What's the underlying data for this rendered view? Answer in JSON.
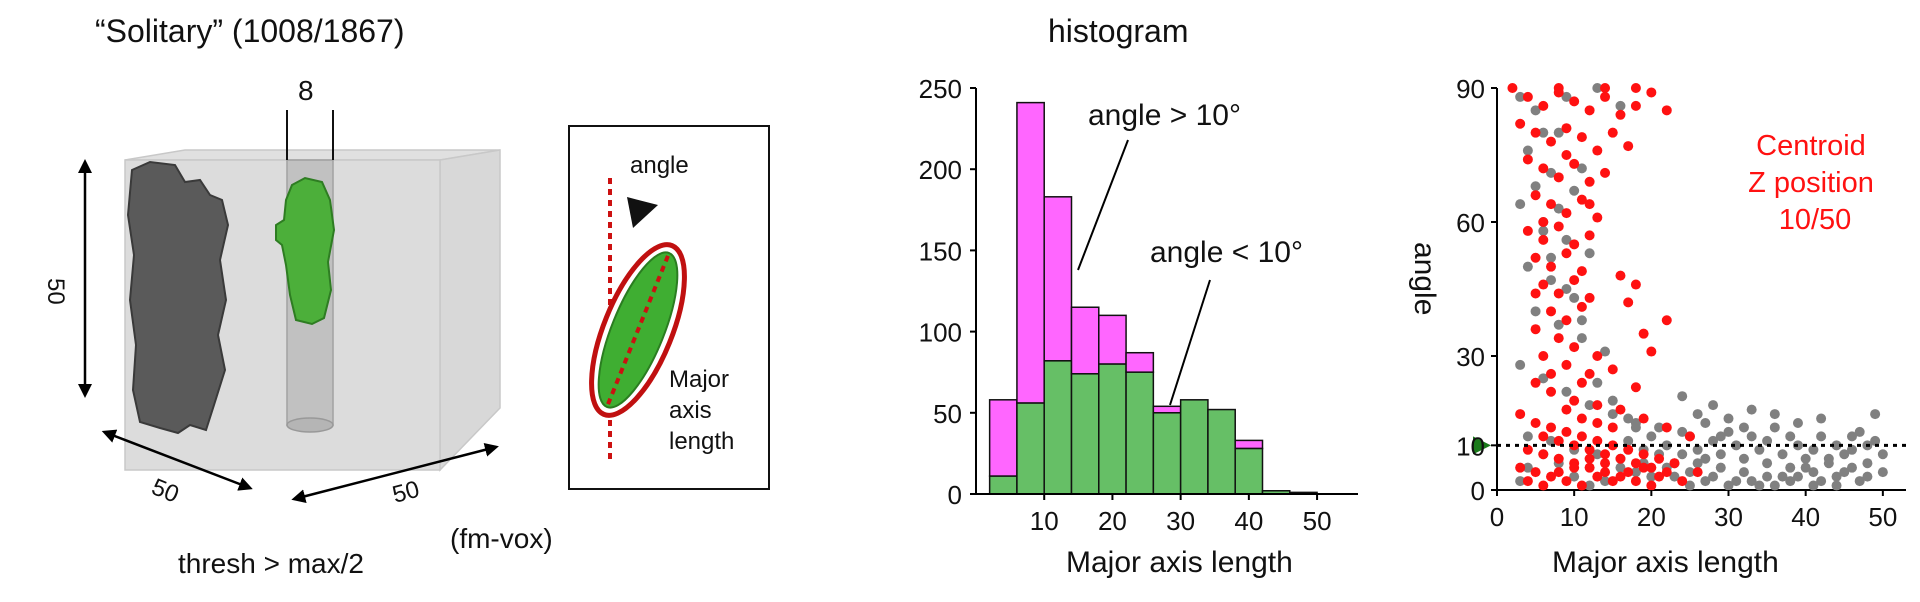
{
  "left_panel": {
    "title": "“Solitary” (1008/1867)",
    "cube_dim_vertical": "50",
    "cube_dim_depth": "50",
    "cube_dim_width": "50",
    "tube_width": "8",
    "thresh_label": "thresh > max/2",
    "units_label": "(fm-vox)",
    "inset_angle_label": "angle",
    "inset_major_label": [
      "Major",
      "axis",
      "length"
    ]
  },
  "colors": {
    "magenta": "#ff66ff",
    "green": "#66bf66",
    "red": "#ff1111",
    "gray": "#808080",
    "dark_object": "#555555",
    "green_object": "#4caf3a",
    "arrow_green": "#1a7a1a"
  },
  "chart_data": [
    {
      "type": "bar",
      "title": "histogram",
      "xlabel": "Major axis length",
      "ylabel": "",
      "xlim": [
        0,
        56
      ],
      "ylim": [
        0,
        250
      ],
      "xticks": [
        10,
        20,
        30,
        40,
        50
      ],
      "yticks": [
        0,
        50,
        100,
        150,
        200,
        250
      ],
      "bin_edges": [
        2,
        6,
        10,
        14,
        18,
        22,
        26,
        30,
        34,
        38,
        42,
        46,
        50,
        54
      ],
      "series": [
        {
          "name": "angle < 10°",
          "values": [
            11,
            56,
            82,
            74,
            80,
            75,
            50,
            58,
            52,
            28,
            2,
            1,
            0
          ]
        },
        {
          "name": "angle > 10°",
          "values": [
            47,
            185,
            101,
            41,
            30,
            12,
            4,
            0,
            0,
            5,
            0,
            0,
            0
          ]
        }
      ],
      "annotations": [
        "angle > 10°",
        "angle < 10°"
      ]
    },
    {
      "type": "scatter",
      "xlabel": "Major axis length",
      "ylabel": "angle",
      "xlim": [
        0,
        53
      ],
      "ylim": [
        0,
        90
      ],
      "xticks": [
        0,
        10,
        20,
        30,
        40,
        50
      ],
      "yticks": [
        0,
        10,
        30,
        60,
        90
      ],
      "threshold": 10,
      "annotation": [
        "Centroid",
        "Z position",
        "10/50"
      ],
      "series": [
        {
          "name": "gray",
          "points": [
            [
              3,
              88
            ],
            [
              5,
              85
            ],
            [
              8,
              80
            ],
            [
              4,
              76
            ],
            [
              7,
              71
            ],
            [
              10,
              67
            ],
            [
              3,
              64
            ],
            [
              6,
              60
            ],
            [
              9,
              56
            ],
            [
              12,
              53
            ],
            [
              4,
              50
            ],
            [
              7,
              47
            ],
            [
              10,
              43
            ],
            [
              5,
              40
            ],
            [
              8,
              37
            ],
            [
              11,
              34
            ],
            [
              14,
              31
            ],
            [
              3,
              28
            ],
            [
              6,
              25
            ],
            [
              9,
              22
            ],
            [
              12,
              19
            ],
            [
              15,
              17
            ],
            [
              18,
              15
            ],
            [
              21,
              14
            ],
            [
              24,
              13
            ],
            [
              4,
              12
            ],
            [
              7,
              11
            ],
            [
              10,
              9
            ],
            [
              13,
              8
            ],
            [
              16,
              7
            ],
            [
              19,
              6
            ],
            [
              22,
              5
            ],
            [
              25,
              4
            ],
            [
              28,
              3
            ],
            [
              31,
              2
            ],
            [
              34,
              1
            ],
            [
              37,
              3
            ],
            [
              40,
              5
            ],
            [
              43,
              7
            ],
            [
              46,
              9
            ],
            [
              49,
              11
            ],
            [
              27,
              15
            ],
            [
              30,
              13
            ],
            [
              33,
              12
            ],
            [
              36,
              14
            ],
            [
              39,
              10
            ],
            [
              42,
              12
            ],
            [
              45,
              8
            ],
            [
              48,
              6
            ],
            [
              26,
              9
            ],
            [
              29,
              8
            ],
            [
              32,
              7
            ],
            [
              35,
              6
            ],
            [
              38,
              5
            ],
            [
              41,
              4
            ],
            [
              44,
              3
            ],
            [
              47,
              2
            ],
            [
              50,
              4
            ],
            [
              28,
              11
            ],
            [
              31,
              10
            ],
            [
              34,
              9
            ],
            [
              37,
              8
            ],
            [
              40,
              7
            ],
            [
              43,
              6
            ],
            [
              46,
              5
            ],
            [
              29,
              5
            ],
            [
              32,
              4
            ],
            [
              35,
              3
            ],
            [
              38,
              2
            ],
            [
              41,
              1
            ],
            [
              44,
              1
            ],
            [
              30,
              1
            ],
            [
              33,
              2
            ],
            [
              36,
              1
            ],
            [
              39,
              3
            ],
            [
              42,
              2
            ],
            [
              45,
              4
            ],
            [
              48,
              3
            ],
            [
              27,
              2
            ],
            [
              25,
              1
            ],
            [
              23,
              3
            ],
            [
              26,
              6
            ],
            [
              24,
              8
            ],
            [
              22,
              10
            ],
            [
              20,
              12
            ],
            [
              18,
              14
            ],
            [
              17,
              16
            ],
            [
              15,
              20
            ],
            [
              13,
              24
            ],
            [
              11,
              38
            ],
            [
              9,
              45
            ],
            [
              7,
              52
            ],
            [
              6,
              58
            ],
            [
              8,
              63
            ],
            [
              5,
              68
            ],
            [
              11,
              72
            ],
            [
              6,
              80
            ],
            [
              9,
              88
            ],
            [
              13,
              90
            ],
            [
              16,
              86
            ],
            [
              49,
              17
            ],
            [
              47,
              13
            ],
            [
              44,
              10
            ],
            [
              42,
              16
            ],
            [
              39,
              15
            ],
            [
              36,
              17
            ],
            [
              33,
              18
            ],
            [
              30,
              16
            ],
            [
              28,
              19
            ],
            [
              26,
              17
            ],
            [
              24,
              21
            ],
            [
              50,
              8
            ],
            [
              48,
              10
            ],
            [
              46,
              12
            ],
            [
              41,
              9
            ],
            [
              38,
              12
            ],
            [
              35,
              11
            ],
            [
              32,
              14
            ],
            [
              29,
              12
            ],
            [
              27,
              7
            ],
            [
              25,
              12
            ],
            [
              23,
              6
            ],
            [
              21,
              8
            ],
            [
              19,
              9
            ],
            [
              17,
              11
            ],
            [
              20,
              3
            ],
            [
              18,
              4
            ],
            [
              16,
              5
            ],
            [
              14,
              2
            ],
            [
              12,
              1
            ],
            [
              10,
              3
            ],
            [
              8,
              6
            ],
            [
              6,
              8
            ],
            [
              4,
              5
            ],
            [
              3,
              2
            ]
          ]
        },
        {
          "name": "red",
          "points": [
            [
              2,
              90
            ],
            [
              4,
              88
            ],
            [
              6,
              86
            ],
            [
              8,
              89
            ],
            [
              10,
              87
            ],
            [
              12,
              85
            ],
            [
              14,
              88
            ],
            [
              16,
              84
            ],
            [
              18,
              86
            ],
            [
              20,
              89
            ],
            [
              22,
              85
            ],
            [
              3,
              82
            ],
            [
              5,
              80
            ],
            [
              7,
              78
            ],
            [
              9,
              81
            ],
            [
              11,
              79
            ],
            [
              13,
              76
            ],
            [
              15,
              80
            ],
            [
              17,
              77
            ],
            [
              4,
              74
            ],
            [
              6,
              72
            ],
            [
              8,
              70
            ],
            [
              10,
              73
            ],
            [
              12,
              69
            ],
            [
              14,
              71
            ],
            [
              5,
              66
            ],
            [
              7,
              64
            ],
            [
              9,
              62
            ],
            [
              11,
              65
            ],
            [
              13,
              61
            ],
            [
              4,
              58
            ],
            [
              6,
              56
            ],
            [
              8,
              59
            ],
            [
              10,
              55
            ],
            [
              12,
              57
            ],
            [
              5,
              52
            ],
            [
              7,
              50
            ],
            [
              9,
              53
            ],
            [
              11,
              49
            ],
            [
              6,
              46
            ],
            [
              8,
              44
            ],
            [
              10,
              47
            ],
            [
              12,
              43
            ],
            [
              16,
              48
            ],
            [
              18,
              46
            ],
            [
              7,
              40
            ],
            [
              9,
              38
            ],
            [
              11,
              41
            ],
            [
              5,
              36
            ],
            [
              8,
              34
            ],
            [
              10,
              32
            ],
            [
              6,
              30
            ],
            [
              9,
              28
            ],
            [
              12,
              26
            ],
            [
              15,
              27
            ],
            [
              18,
              23
            ],
            [
              5,
              24
            ],
            [
              7,
              22
            ],
            [
              10,
              20
            ],
            [
              13,
              19
            ],
            [
              16,
              18
            ],
            [
              19,
              16
            ],
            [
              22,
              14
            ],
            [
              25,
              12
            ],
            [
              3,
              17
            ],
            [
              5,
              15
            ],
            [
              7,
              14
            ],
            [
              9,
              13
            ],
            [
              11,
              12
            ],
            [
              13,
              11
            ],
            [
              15,
              10
            ],
            [
              17,
              9
            ],
            [
              19,
              8
            ],
            [
              21,
              7
            ],
            [
              23,
              6
            ],
            [
              4,
              9
            ],
            [
              6,
              8
            ],
            [
              8,
              7
            ],
            [
              10,
              6
            ],
            [
              12,
              5
            ],
            [
              14,
              4
            ],
            [
              16,
              3
            ],
            [
              18,
              2
            ],
            [
              20,
              1
            ],
            [
              3,
              5
            ],
            [
              5,
              4
            ],
            [
              7,
              3
            ],
            [
              9,
              2
            ],
            [
              11,
              1
            ],
            [
              13,
              3
            ],
            [
              15,
              2
            ],
            [
              17,
              4
            ],
            [
              19,
              5
            ],
            [
              21,
              3
            ],
            [
              24,
              2
            ],
            [
              26,
              4
            ],
            [
              6,
              12
            ],
            [
              8,
              11
            ],
            [
              10,
              10
            ],
            [
              12,
              9
            ],
            [
              14,
              8
            ],
            [
              16,
              7
            ],
            [
              18,
              6
            ],
            [
              20,
              5
            ],
            [
              22,
              4
            ],
            [
              4,
              2
            ],
            [
              6,
              1
            ],
            [
              8,
              4
            ],
            [
              10,
              5
            ],
            [
              12,
              7
            ],
            [
              14,
              6
            ],
            [
              9,
              18
            ],
            [
              11,
              16
            ],
            [
              13,
              15
            ],
            [
              15,
              14
            ],
            [
              7,
              26
            ],
            [
              11,
              24
            ],
            [
              13,
              30
            ],
            [
              17,
              42
            ],
            [
              19,
              35
            ],
            [
              20,
              31
            ],
            [
              22,
              38
            ],
            [
              8,
              90
            ],
            [
              14,
              90
            ],
            [
              18,
              90
            ],
            [
              6,
              60
            ],
            [
              12,
              64
            ],
            [
              9,
              75
            ],
            [
              5,
              44
            ]
          ]
        }
      ]
    }
  ]
}
